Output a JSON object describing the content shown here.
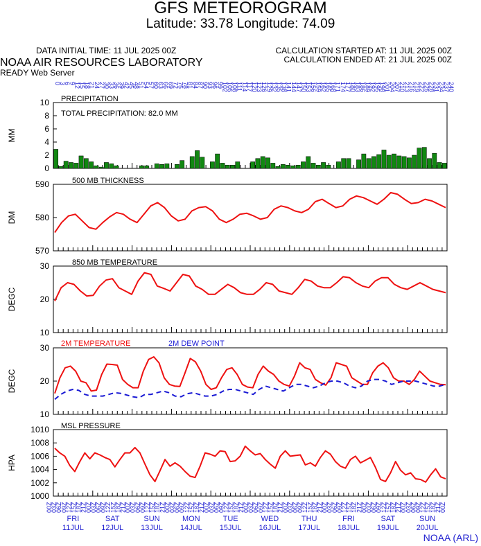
{
  "header": {
    "title": "GFS METEOROGRAM",
    "subtitle": "Latitude: 33.78 Longitude:  74.09",
    "init_time": "DATA INITIAL TIME: 11 JUL 2025 00Z",
    "calc_started": "CALCULATION STARTED AT: 11 JUL 2025 00Z",
    "calc_ended": "CALCULATION ENDED AT: 21 JUL 2025 00Z",
    "lab": "NOAA AIR RESOURCES LABORATORY",
    "server": "READY Web Server",
    "credit": "NOAA (ARL)"
  },
  "colors": {
    "precip": "#118811",
    "temp": "#ee1111",
    "dew": "#1a1ad4",
    "axis_text": "#1f1fd0"
  },
  "chart_data": [
    {
      "type": "bar",
      "id": "precip",
      "label": "PRECIPITATION",
      "annotation": "TOTAL PRECIPITATION:  82.0 MM",
      "ylabel": "MM",
      "ylim": [
        0,
        10
      ],
      "yticks": [
        0,
        2,
        4,
        6,
        8,
        10
      ],
      "series": [
        {
          "values": [
            2.9,
            0.3,
            1.1,
            0.9,
            0.8,
            1.9,
            1.5,
            1.0,
            0.4,
            0.2,
            0.9,
            0.7,
            0.4,
            0,
            0,
            0,
            0,
            0.4,
            0.4,
            0,
            0.7,
            0.6,
            0.7,
            0,
            0.6,
            1.2,
            0,
            1.8,
            2.7,
            1.7,
            0,
            1.0,
            2.2,
            0.8,
            0.5,
            0.5,
            1.0,
            0,
            0,
            1.0,
            1.5,
            1.8,
            1.6,
            0.8,
            0.3,
            0.6,
            0.5,
            0.4,
            0.5,
            1.0,
            1.8,
            0.8,
            0.5,
            0.9,
            0.5,
            0,
            1.0,
            1.5,
            1.5,
            0,
            1.3,
            2.2,
            1.5,
            1.8,
            2.1,
            2.8,
            2.0,
            2.2,
            1.9,
            1.8,
            1.6,
            2.0,
            3.1,
            3.2,
            1.5,
            2.3,
            0.9,
            0.8
          ]
        }
      ]
    },
    {
      "type": "line",
      "id": "thickness",
      "label": "500 MB  THICKNESS",
      "ylabel": "DM",
      "ylim": [
        570,
        590
      ],
      "yticks": [
        570,
        580,
        590
      ],
      "series": [
        {
          "values": [
            575.5,
            578.5,
            580.5,
            581,
            579,
            577,
            576.5,
            578.5,
            580.2,
            581.5,
            581,
            579.5,
            578.5,
            581,
            583.5,
            584.5,
            583,
            580.5,
            579,
            579.5,
            582,
            583,
            583.3,
            582,
            579.5,
            578.5,
            579.5,
            581,
            581.3,
            580.5,
            579.5,
            580,
            582.5,
            583.5,
            583,
            582,
            581.5,
            582.5,
            584.8,
            585.5,
            584.2,
            583,
            583.5,
            585.5,
            586.5,
            586,
            585,
            584,
            585.5,
            587.5,
            587,
            585.5,
            584.2,
            584.5,
            585.5,
            585,
            584,
            583
          ]
        }
      ]
    },
    {
      "type": "line",
      "id": "t850",
      "label": "850 MB  TEMPERATURE",
      "ylabel": "DEGC",
      "ylim": [
        10,
        30
      ],
      "yticks": [
        10,
        20,
        30
      ],
      "series": [
        {
          "values": [
            19.5,
            23.5,
            25,
            24.5,
            22.5,
            21,
            21.2,
            24,
            25.8,
            26.2,
            23.5,
            22.5,
            21.5,
            25.5,
            28,
            27.5,
            24,
            23.3,
            22.5,
            25,
            27.5,
            27,
            24,
            23,
            21.5,
            21.5,
            23,
            24.5,
            23.5,
            22,
            21.5,
            21.5,
            23,
            25,
            24.5,
            22.5,
            22,
            21.5,
            23.5,
            26,
            25.5,
            24,
            23.5,
            23.5,
            25,
            26.8,
            26.5,
            25,
            24,
            23.5,
            25.5,
            26.5,
            26.5,
            24.5,
            23.5,
            23,
            24,
            25,
            24,
            23,
            22.5,
            22
          ]
        }
      ]
    },
    {
      "type": "line",
      "id": "t2m",
      "label": "2M TEMPERATURE",
      "label2": "2M  DEW POINT",
      "ylabel": "DEGC",
      "ylim": [
        10,
        30
      ],
      "yticks": [
        10,
        20,
        30
      ],
      "series": [
        {
          "name": "2M TEMPERATURE",
          "values": [
            16.3,
            21,
            24,
            24.5,
            23,
            20,
            19.5,
            17,
            17.3,
            22,
            25.1,
            25,
            24.8,
            20.5,
            19,
            18,
            18,
            23,
            26.5,
            27.3,
            25.5,
            21,
            19,
            18.5,
            18.4,
            22.5,
            26.8,
            25.8,
            23,
            19,
            17.5,
            18,
            21,
            23.5,
            24,
            22,
            19,
            18.2,
            18,
            22,
            24.5,
            23,
            22,
            20,
            19,
            18.5,
            21.5,
            25.5,
            24,
            23.5,
            20.5,
            19.5,
            18.8,
            21,
            25.5,
            25,
            24.5,
            21,
            20,
            19,
            19,
            22.5,
            24.5,
            25.5,
            24,
            21,
            20,
            20,
            19,
            20.5,
            23,
            21.5,
            20,
            19.5,
            19,
            18.9
          ]
        },
        {
          "name": "2M  DEW POINT",
          "values": [
            14.5,
            16,
            17,
            17.5,
            17.2,
            16,
            15.5,
            15.5,
            15.5,
            16,
            16.5,
            16.3,
            15.8,
            15.3,
            15,
            16,
            16,
            16.5,
            17,
            16.5,
            15.5,
            15.3,
            16.2,
            16.5,
            16,
            15.5,
            15.5,
            16,
            17,
            17.5,
            17.5,
            17,
            16.5,
            16,
            17.5,
            18.5,
            18,
            17.5,
            17,
            18,
            19,
            19,
            18.5,
            18,
            18.5,
            19.5,
            20,
            20,
            19.5,
            18.5,
            18,
            18.5,
            20,
            20.5,
            20.5,
            20,
            19,
            19.5,
            20,
            20,
            20,
            19.5,
            19,
            18.5,
            18.5,
            19
          ]
        }
      ]
    },
    {
      "type": "line",
      "id": "mslp",
      "label": "MSL PRESSURE",
      "ylabel": "HPA",
      "ylim": [
        1000,
        1010
      ],
      "yticks": [
        1000,
        1002,
        1004,
        1006,
        1008,
        1010
      ],
      "series": [
        {
          "values": [
            1007.2,
            1006.5,
            1006,
            1004.6,
            1003.7,
            1005.2,
            1006.5,
            1005.6,
            1006.5,
            1006.2,
            1005.8,
            1005.5,
            1004.4,
            1005.5,
            1006.5,
            1006.5,
            1007.3,
            1006.5,
            1004.8,
            1003.2,
            1002.2,
            1003.8,
            1005.5,
            1004.5,
            1005,
            1004.5,
            1003.7,
            1003,
            1002.8,
            1004.5,
            1006.5,
            1006.3,
            1006,
            1006.8,
            1006.7,
            1005.2,
            1005.3,
            1006,
            1007.5,
            1006.8,
            1006.2,
            1006.4,
            1005.5,
            1004.8,
            1004.2,
            1006,
            1006.8,
            1006,
            1006.1,
            1006.2,
            1004.7,
            1005,
            1004.5,
            1005.8,
            1006.8,
            1006.3,
            1005.2,
            1004.5,
            1004.2,
            1005.5,
            1006,
            1005,
            1005.4,
            1005.8,
            1004.3,
            1002.5,
            1002.2,
            1003.5,
            1005.2,
            1003.9,
            1003.2,
            1003.5,
            1002.6,
            1002.5,
            1002.1,
            1003.2,
            1004.1,
            1002.9,
            1002.6
          ]
        }
      ]
    }
  ],
  "time_axis": {
    "top_ticks": [
      "0",
      "3",
      "6",
      "9",
      "12",
      "15",
      "18",
      "21",
      "24",
      "27",
      "30",
      "33",
      "36",
      "39",
      "42",
      "45",
      "48",
      "51",
      "54",
      "57",
      "60",
      "63",
      "66",
      "69",
      "72",
      "75",
      "78",
      "81",
      "84",
      "87",
      "90",
      "93",
      "96",
      "99",
      "102",
      "105",
      "108",
      "111",
      "114",
      "117",
      "120",
      "123",
      "126",
      "129",
      "132",
      "135",
      "138",
      "141",
      "144",
      "147",
      "150",
      "153",
      "156",
      "159",
      "162",
      "165",
      "168",
      "171",
      "174",
      "177",
      "180",
      "183",
      "186",
      "189",
      "192",
      "195",
      "198",
      "201",
      "204",
      "207",
      "210",
      "213",
      "216",
      "219",
      "222",
      "225",
      "228",
      "231",
      "234",
      "237",
      "240"
    ],
    "bottom_ticks": [
      "00Z",
      "03Z",
      "06Z",
      "09Z",
      "12Z",
      "15Z",
      "18Z",
      "21Z",
      "00Z",
      "03Z",
      "06Z",
      "09Z",
      "12Z",
      "15Z",
      "18Z",
      "21Z",
      "00Z",
      "03Z",
      "06Z",
      "09Z",
      "12Z",
      "15Z",
      "18Z",
      "21Z",
      "00Z",
      "03Z",
      "06Z",
      "09Z",
      "12Z",
      "15Z",
      "18Z",
      "21Z",
      "00Z",
      "03Z",
      "06Z",
      "09Z",
      "12Z",
      "15Z",
      "18Z",
      "21Z",
      "00Z",
      "03Z",
      "06Z",
      "09Z",
      "12Z",
      "15Z",
      "18Z",
      "21Z",
      "00Z",
      "03Z",
      "06Z",
      "09Z",
      "12Z",
      "15Z",
      "18Z",
      "21Z",
      "00Z",
      "03Z",
      "06Z",
      "09Z",
      "12Z",
      "15Z",
      "18Z",
      "21Z",
      "00Z",
      "03Z",
      "06Z",
      "09Z",
      "12Z",
      "15Z",
      "18Z",
      "21Z",
      "00Z",
      "03Z",
      "06Z",
      "09Z",
      "12Z",
      "15Z",
      "18Z",
      "21Z",
      "00Z"
    ],
    "days": [
      {
        "dow": "FRI",
        "date": "11JUL"
      },
      {
        "dow": "SAT",
        "date": "12JUL"
      },
      {
        "dow": "SUN",
        "date": "13JUL"
      },
      {
        "dow": "MON",
        "date": "14JUL"
      },
      {
        "dow": "TUE",
        "date": "15JUL"
      },
      {
        "dow": "WED",
        "date": "16JUL"
      },
      {
        "dow": "THU",
        "date": "17JUL"
      },
      {
        "dow": "FRI",
        "date": "18JUL"
      },
      {
        "dow": "SAT",
        "date": "19JUL"
      },
      {
        "dow": "SUN",
        "date": "20JUL"
      }
    ]
  }
}
